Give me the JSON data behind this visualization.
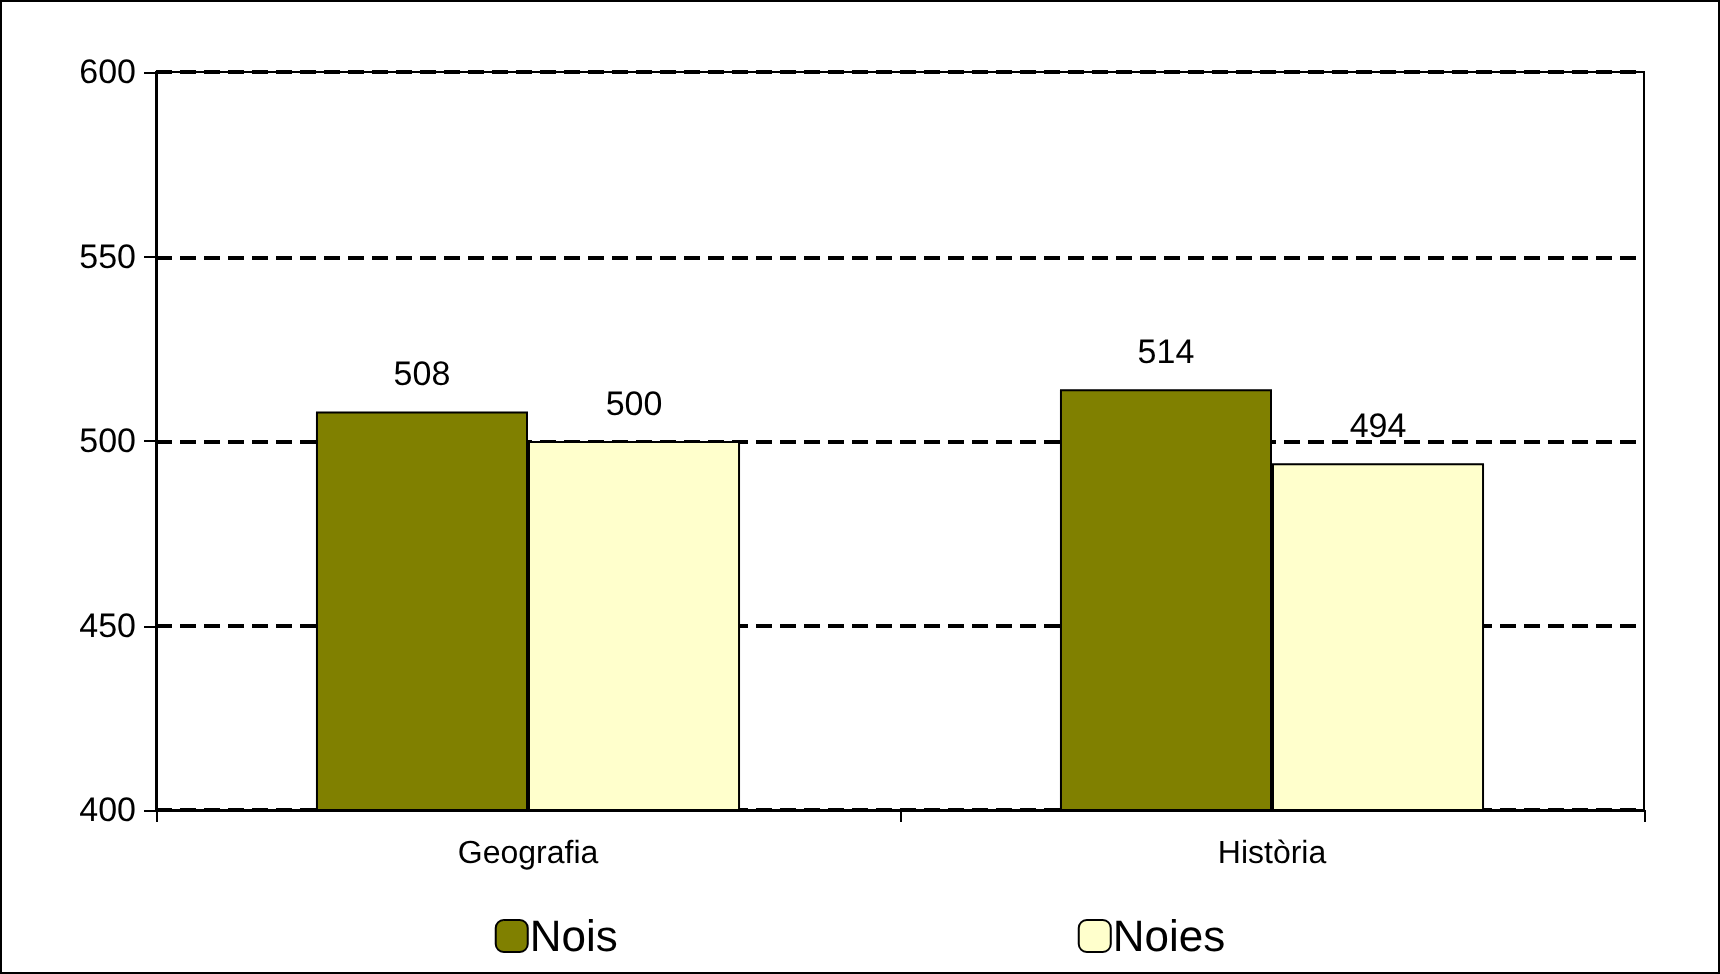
{
  "chart_data": {
    "type": "bar",
    "categories": [
      "Geografia",
      "Història"
    ],
    "series": [
      {
        "name": "Nois",
        "color": "#808000",
        "values": [
          508,
          514
        ]
      },
      {
        "name": "Noies",
        "color": "#ffffcc",
        "values": [
          500,
          494
        ]
      }
    ],
    "ylim": [
      400,
      600
    ],
    "yticks": [
      400,
      450,
      500,
      550,
      600
    ],
    "grid": "y",
    "line_style": "dashed",
    "legend": "bottom",
    "data_labels": true
  }
}
